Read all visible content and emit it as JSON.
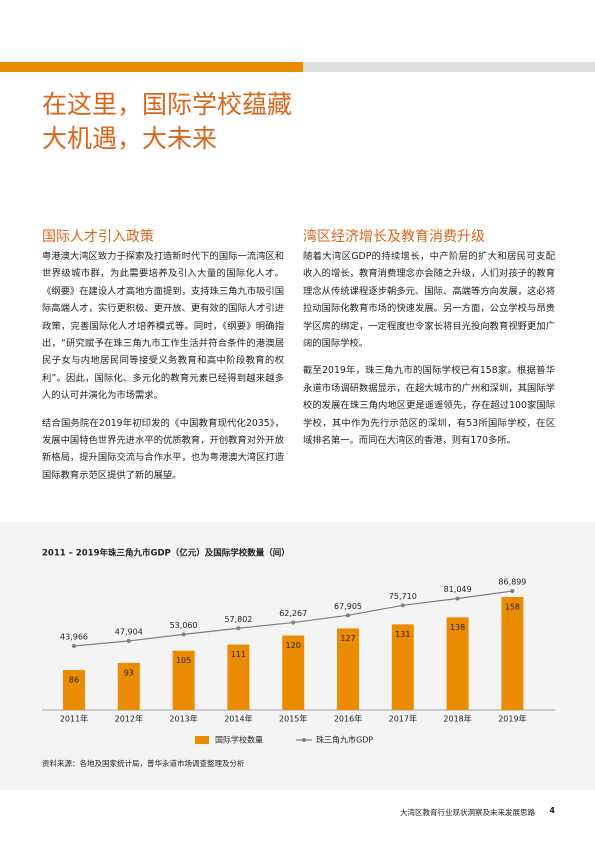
{
  "header": {
    "title_lines": [
      "在这里，国际学校蕴藏",
      "大机遇，大未来"
    ]
  },
  "sections": [
    {
      "heading": "国际人才引入政策",
      "paragraphs": [
        "粤港澳大湾区致力于探索及打造新时代下的国际一流湾区和世界级城市群，为此需要培养及引入大量的国际化人才。《纲要》在建设人才高地方面提到，支持珠三角九市吸引国际高端人才，实行更积极、更开放、更有效的国际人才引进政策，完善国际化人才培养模式等。同时，《纲要》明确指出，“研究赋予在珠三角九市工作生活并符合条件的港澳居民子女与内地居民同等接受义务教育和高中阶段教育的权利”。因此，国际化、多元化的教育元素已经得到越来越多人的认可并演化为市场需求。",
        "结合国务院在2019年初印发的《中国教育现代化2035》，发展中国特色世界先进水平的优质教育，开创教育对外开放新格局，提升国际交流与合作水平，也为粤港澳大湾区打造国际教育示范区提供了新的展望。"
      ]
    },
    {
      "heading": "湾区经济增长及教育消费升级",
      "paragraphs": [
        "随着大湾区GDP的持续增长，中产阶层的扩大和居民可支配收入的增长，教育消费理念亦会随之升级，人们对孩子的教育理念从传统课程逐步朝多元、国际、高端等方向发展，这必将拉动国际化教育市场的快速发展。另一方面，公立学校与昂贵学区房的绑定，一定程度也令家长将目光投向教育视野更加广阔的国际学校。",
        "截至2019年，珠三角九市的国际学校已有158家。根据普华永道市场调研数据显示，在超大城市的广州和深圳，其国际学校的发展在珠三角内地区更是遥遥领先，存在超过100家国际学校，其中作为先行示范区的深圳，有53所国际学校，在区域排名第一。而同在大湾区的香港，则有170多所。"
      ]
    }
  ],
  "chart_data": {
    "type": "bar",
    "title": "2011 – 2019年珠三角九市GDP（亿元）及国际学校数量（间）",
    "categories": [
      "2011年",
      "2012年",
      "2013年",
      "2014年",
      "2015年",
      "2016年",
      "2017年",
      "2018年",
      "2019年"
    ],
    "series": [
      {
        "name": "国际学校数量",
        "type": "bar",
        "color": "#eb8c00",
        "values": [
          86,
          93,
          105,
          111,
          120,
          127,
          131,
          138,
          158
        ]
      },
      {
        "name": "珠三角九市GDP",
        "type": "line",
        "color": "#7f7f7f",
        "values": [
          43966,
          47904,
          53060,
          57802,
          62267,
          67905,
          75710,
          81049,
          86899
        ],
        "value_labels": [
          "43,966",
          "47,904",
          "53,060",
          "57,802",
          "62,267",
          "67,905",
          "75,710",
          "81,049",
          "86,899"
        ]
      }
    ]
  },
  "source": "资料来源：各地及国家统计局，普华永道市场调查整理及分析",
  "footer": {
    "text": "大湾区教育行业现状洞察及未来发展思路",
    "page_number": 4
  }
}
